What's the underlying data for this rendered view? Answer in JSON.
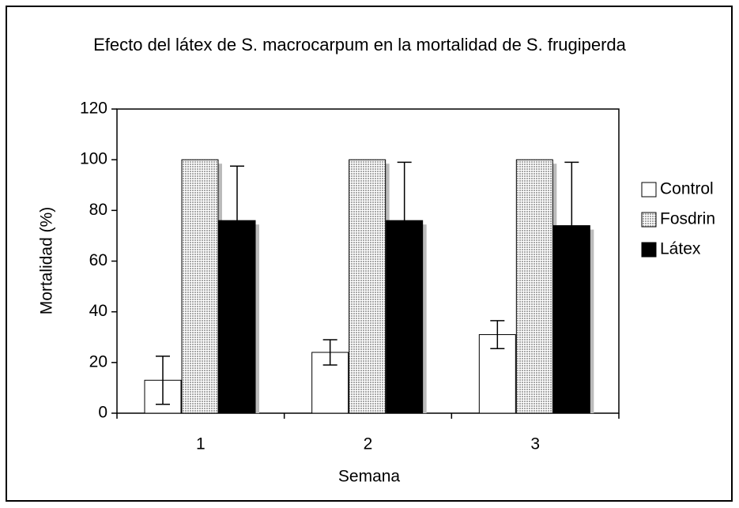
{
  "chart_data": {
    "type": "bar",
    "title": "Efecto del látex de S. macrocarpum en la mortalidad de S. frugiperda",
    "x_label": "Semana",
    "y_label": "Mortalidad (%)",
    "categories": [
      "1",
      "2",
      "3"
    ],
    "series": [
      {
        "name": "Control",
        "color": "#ffffff",
        "values": [
          13,
          24,
          31
        ],
        "errors": [
          9.5,
          5,
          5.5
        ]
      },
      {
        "name": "Fosdrin",
        "color": "#a8a8a8",
        "values": [
          100,
          100,
          100
        ]
      },
      {
        "name": "Látex",
        "color": "#000000",
        "values": [
          76,
          76,
          74
        ],
        "errors": [
          21.5,
          23,
          25
        ]
      }
    ],
    "ylim": [
      0,
      120
    ],
    "yticks": [
      0,
      20,
      40,
      60,
      80,
      100,
      120
    ],
    "legend": "right"
  }
}
